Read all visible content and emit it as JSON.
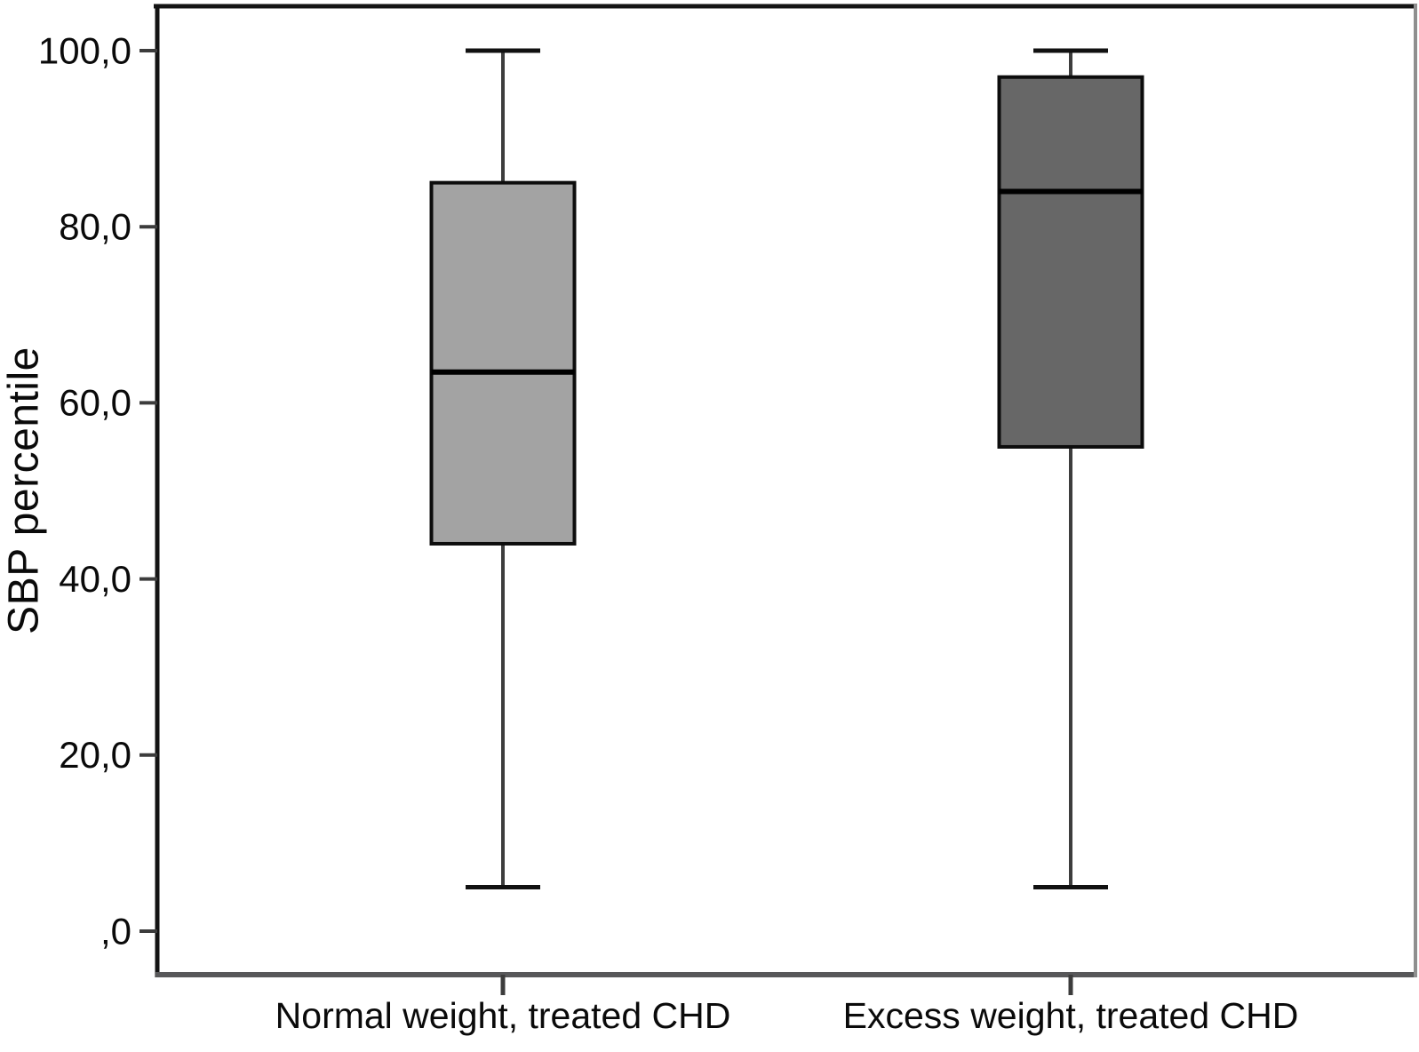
{
  "figure": {
    "background": "#ffffff"
  },
  "chart_data": {
    "type": "boxplot",
    "title": "",
    "xlabel": "",
    "ylabel": "SBP percentile",
    "ylim": [
      0,
      100
    ],
    "grid": false,
    "legend": "none",
    "decimal_separator": "comma",
    "yticks": [
      {
        "value": 100,
        "label": "100,0"
      },
      {
        "value": 80,
        "label": "80,0"
      },
      {
        "value": 60,
        "label": "60,0"
      },
      {
        "value": 40,
        "label": "40,0"
      },
      {
        "value": 20,
        "label": "20,0"
      },
      {
        "value": 0,
        "label": ",0"
      }
    ],
    "categories": [
      "Normal weight, treated CHD",
      "Excess weight, treated CHD"
    ],
    "series": [
      {
        "name": "Normal weight, treated CHD",
        "whisker_low": 5,
        "q1": 44,
        "median": 63.5,
        "q3": 85,
        "whisker_high": 100,
        "fill": "#a3a3a3"
      },
      {
        "name": "Excess weight, treated CHD",
        "whisker_low": 5,
        "q1": 55,
        "median": 84,
        "q3": 97,
        "whisker_high": 100,
        "fill": "#676767"
      }
    ],
    "colors": {
      "box_border": "#0d0d0d",
      "median": "#000000",
      "whisker_stem": "#3d3d3d",
      "whisker_cap": "#111111",
      "tick": "#3c3c3c",
      "tick_label": "#0a0a0a",
      "frame_top": "#141414",
      "frame_left": "#141414",
      "frame_bottom": "#58585a",
      "frame_right": "#8f8f8f",
      "plot_background": "#ffffff"
    }
  }
}
